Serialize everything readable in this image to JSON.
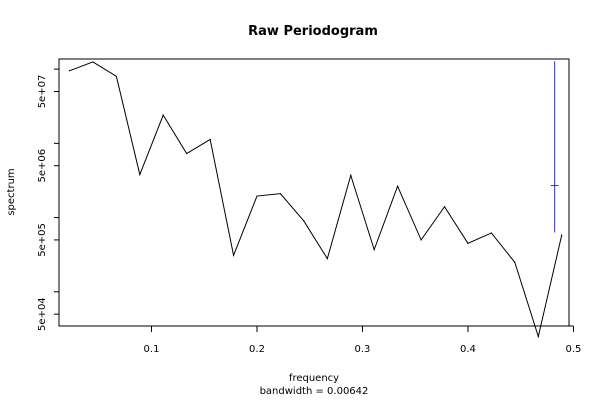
{
  "chart_data": {
    "type": "line",
    "title": "Raw Periodogram",
    "xlabel": "frequency",
    "sublabel": "bandwidth = 0.00642",
    "ylabel": "spectrum",
    "y_scale": "log",
    "xlim": [
      0.0123,
      0.4958
    ],
    "ylim": [
      34600,
      137000000
    ],
    "grid": false,
    "legend": "none",
    "x_ticks": [
      {
        "value": 0.1,
        "label": "0.1"
      },
      {
        "value": 0.2,
        "label": "0.2"
      },
      {
        "value": 0.3,
        "label": "0.3"
      },
      {
        "value": 0.4,
        "label": "0.4"
      },
      {
        "value": 0.5,
        "label": "0.5"
      }
    ],
    "y_major_ticks": [
      {
        "value": 50000,
        "label": "5e+04"
      },
      {
        "value": 500000,
        "label": "5e+05"
      },
      {
        "value": 5000000,
        "label": "5e+06"
      },
      {
        "value": 50000000,
        "label": "5e+07"
      }
    ],
    "y_minor_ticks": [
      100000,
      1000000,
      10000000,
      100000000
    ],
    "series": [
      {
        "color": "#000000",
        "x": [
          0.0222,
          0.0444,
          0.0667,
          0.0889,
          0.1111,
          0.1333,
          0.1556,
          0.1778,
          0.2,
          0.2222,
          0.2444,
          0.2667,
          0.2889,
          0.3111,
          0.3333,
          0.3556,
          0.3778,
          0.4,
          0.4222,
          0.4444,
          0.4667,
          0.4889
        ],
        "y": [
          95000000,
          125000000,
          80000000,
          3800000,
          24000000,
          7300000,
          11300000,
          310000,
          1950000,
          2100000,
          900000,
          280000,
          3700000,
          370000,
          2650000,
          500000,
          1400000,
          450000,
          620000,
          250000,
          25000,
          580000
        ]
      }
    ],
    "confidence_bar": {
      "color": "#3333cc",
      "x": 0.4822,
      "center": 2700000,
      "upper": 128000000,
      "lower": 630000
    }
  }
}
